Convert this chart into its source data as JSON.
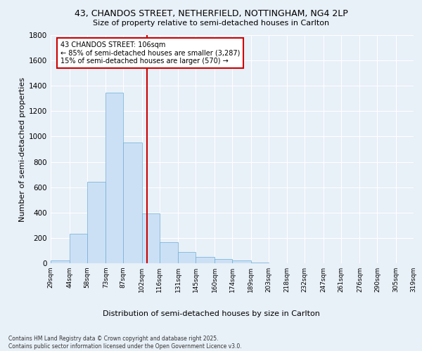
{
  "title_line1": "43, CHANDOS STREET, NETHERFIELD, NOTTINGHAM, NG4 2LP",
  "title_line2": "Size of property relative to semi-detached houses in Carlton",
  "xlabel": "Distribution of semi-detached houses by size in Carlton",
  "ylabel": "Number of semi-detached properties",
  "footer_line1": "Contains HM Land Registry data © Crown copyright and database right 2025.",
  "footer_line2": "Contains public sector information licensed under the Open Government Licence v3.0.",
  "annotation_line1": "43 CHANDOS STREET: 106sqm",
  "annotation_line2": "← 85% of semi-detached houses are smaller (3,287)",
  "annotation_line3": "15% of semi-detached houses are larger (570) →",
  "property_size": 106,
  "bin_edges": [
    29,
    44,
    58,
    73,
    87,
    102,
    116,
    131,
    145,
    160,
    174,
    189,
    203,
    218,
    232,
    247,
    261,
    276,
    290,
    305,
    319
  ],
  "bar_heights": [
    20,
    230,
    645,
    1345,
    955,
    395,
    165,
    90,
    50,
    35,
    20,
    5,
    0,
    0,
    0,
    0,
    0,
    0,
    0,
    0
  ],
  "bar_color": "#cce0f5",
  "bar_edge_color": "#6baed6",
  "vline_color": "#cc0000",
  "vline_x": 106,
  "ylim": [
    0,
    1800
  ],
  "yticks": [
    0,
    200,
    400,
    600,
    800,
    1000,
    1200,
    1400,
    1600,
    1800
  ],
  "background_color": "#e8f0f8",
  "grid_color": "#ffffff",
  "annotation_box_color": "#ffffff",
  "annotation_box_edge_color": "#cc0000"
}
